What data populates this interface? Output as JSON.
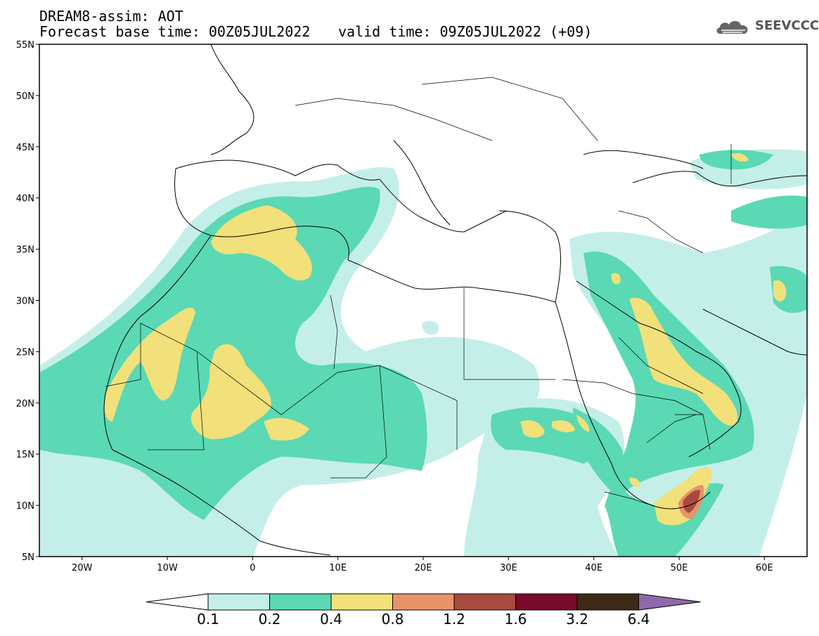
{
  "header": {
    "line1": "DREAM8-assim: AOT",
    "line2_left": "Forecast base time: 00Z05JUL2022",
    "line2_right": "valid time: 09Z05JUL2022 (+09)"
  },
  "logo": {
    "text": "SEEVCCC",
    "icon": "cloud-icon"
  },
  "map": {
    "lon_range": [
      -25,
      65
    ],
    "lat_range": [
      5,
      55
    ],
    "lat_ticks": [
      {
        "lat": 55,
        "label": "55N"
      },
      {
        "lat": 50,
        "label": "50N"
      },
      {
        "lat": 45,
        "label": "45N"
      },
      {
        "lat": 40,
        "label": "40N"
      },
      {
        "lat": 35,
        "label": "35N"
      },
      {
        "lat": 30,
        "label": "30N"
      },
      {
        "lat": 25,
        "label": "25N"
      },
      {
        "lat": 20,
        "label": "20N"
      },
      {
        "lat": 15,
        "label": "15N"
      },
      {
        "lat": 10,
        "label": "10N"
      },
      {
        "lat": 5,
        "label": "5N"
      }
    ],
    "lon_ticks": [
      {
        "lon": -20,
        "label": "20W"
      },
      {
        "lon": -10,
        "label": "10W"
      },
      {
        "lon": 0,
        "label": "0"
      },
      {
        "lon": 10,
        "label": "10E"
      },
      {
        "lon": 20,
        "label": "20E"
      },
      {
        "lon": 30,
        "label": "30E"
      },
      {
        "lon": 40,
        "label": "40E"
      },
      {
        "lon": 50,
        "label": "50E"
      },
      {
        "lon": 60,
        "label": "60E"
      }
    ]
  },
  "colorbar": {
    "bins": [
      {
        "color": "#c4efe9"
      },
      {
        "color": "#5ad9b4"
      },
      {
        "color": "#f2e07a"
      },
      {
        "color": "#e8936a"
      },
      {
        "color": "#a64b3e"
      },
      {
        "color": "#7a0a2c"
      },
      {
        "color": "#3d2a18"
      }
    ],
    "low_extend_color": "#ffffff",
    "high_extend_color": "#8e6aa8",
    "labels": [
      "0.1",
      "0.2",
      "0.4",
      "0.8",
      "1.2",
      "1.6",
      "3.2",
      "6.4"
    ]
  }
}
